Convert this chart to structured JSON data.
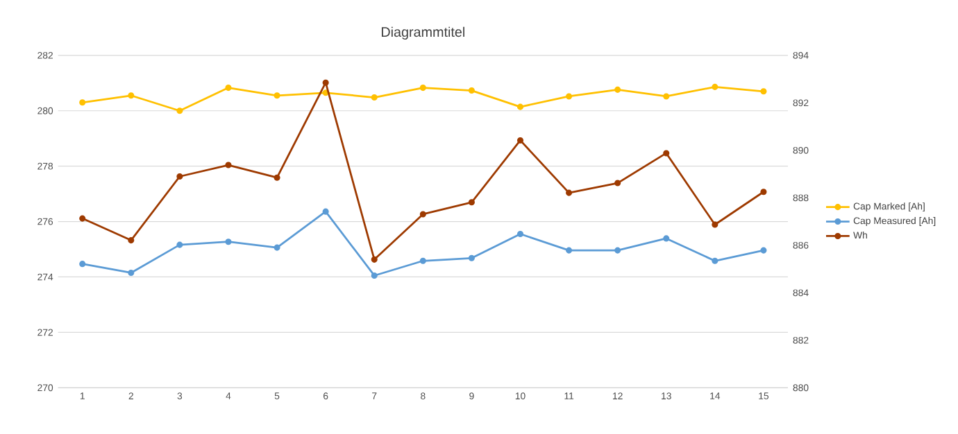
{
  "chart_data": {
    "type": "line",
    "title": "Diagrammtitel",
    "categories": [
      "1",
      "2",
      "3",
      "4",
      "5",
      "6",
      "7",
      "8",
      "9",
      "10",
      "11",
      "12",
      "13",
      "14",
      "15"
    ],
    "series": [
      {
        "name": "Cap Marked [Ah]",
        "color": "#ffc000",
        "values": [
          280.3,
          280.55,
          280.0,
          280.83,
          280.55,
          280.65,
          280.48,
          280.83,
          280.73,
          280.14,
          280.52,
          280.76,
          280.52,
          280.86,
          280.7
        ]
      },
      {
        "name": "Cap Measured [Ah]",
        "color": "#5b9bd5",
        "values": [
          274.47,
          274.15,
          275.16,
          275.27,
          275.06,
          276.36,
          274.05,
          274.58,
          274.68,
          275.55,
          274.96,
          274.96,
          275.39,
          274.58,
          274.96
        ]
      },
      {
        "name": "Wh",
        "color": "#9e3a00",
        "axis": "y2",
        "values": [
          887.13,
          886.21,
          888.9,
          889.38,
          888.85,
          892.85,
          885.4,
          887.31,
          887.81,
          890.42,
          888.21,
          888.62,
          889.88,
          886.87,
          888.25
        ]
      }
    ],
    "ylim": [
      270,
      282
    ],
    "yticks": [
      270,
      272,
      274,
      276,
      278,
      280,
      282
    ],
    "y2lim": [
      880,
      894
    ],
    "y2ticks": [
      880,
      882,
      884,
      886,
      888,
      890,
      892,
      894
    ],
    "grid": "y",
    "legend": "right",
    "marker": "circle",
    "line_style": "solid"
  }
}
